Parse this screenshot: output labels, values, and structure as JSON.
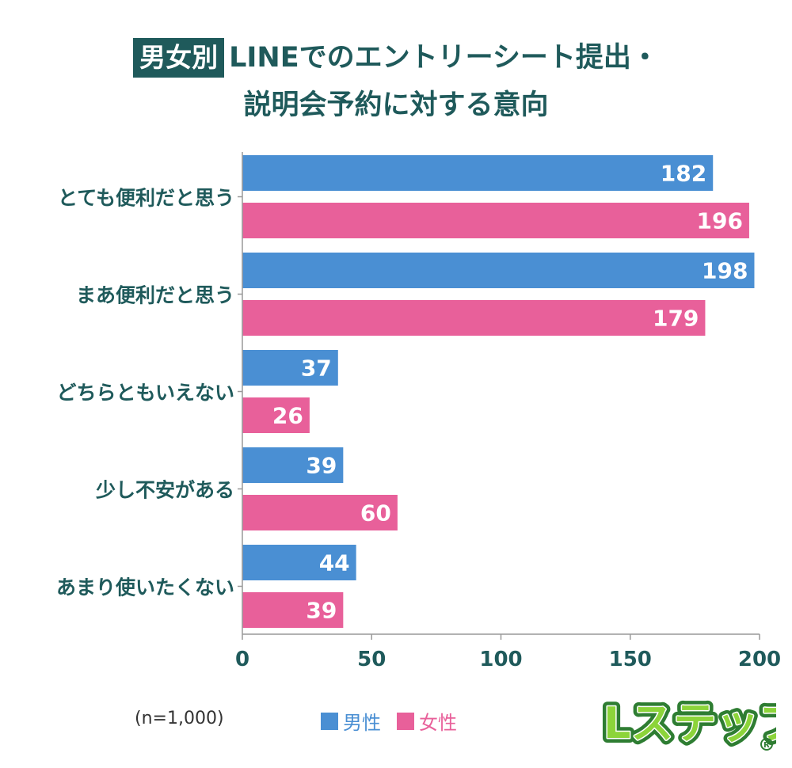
{
  "title": {
    "badge": "男女別",
    "line1": "LINEでのエントリーシート提出・",
    "line2": "説明会予約に対する意向"
  },
  "sample_note": "(n=1,000)",
  "logo_text": "Lステップ",
  "colors": {
    "male": "#4a8fd3",
    "female": "#e8609a",
    "title": "#1f5a5b",
    "axis_text": "#1f5a5b"
  },
  "chart_data": {
    "type": "bar",
    "orientation": "horizontal",
    "categories": [
      "とても便利だと思う",
      "まあ便利だと思う",
      "どちらともいえない",
      "少し不安がある",
      "あまり使いたくない"
    ],
    "series": [
      {
        "name": "男性",
        "values": [
          182,
          198,
          37,
          39,
          44
        ]
      },
      {
        "name": "女性",
        "values": [
          196,
          179,
          26,
          60,
          39
        ]
      }
    ],
    "xlim": [
      0,
      200
    ],
    "xticks": [
      0,
      50,
      100,
      150,
      200
    ],
    "grid": false,
    "legend_position": "bottom"
  }
}
